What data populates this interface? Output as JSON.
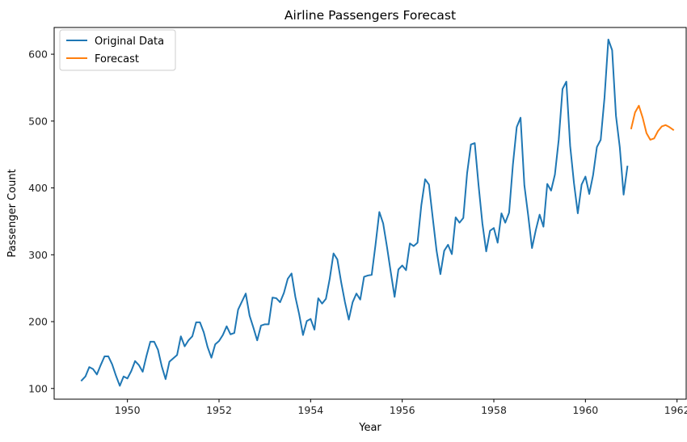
{
  "chart_data": {
    "type": "line",
    "title": "Airline Passengers Forecast",
    "xlabel": "Year",
    "ylabel": "Passenger Count",
    "xlim": [
      1948.4,
      1962.2
    ],
    "ylim": [
      84,
      640
    ],
    "xticks": [
      1950,
      1952,
      1954,
      1956,
      1958,
      1960,
      1962
    ],
    "yticks": [
      100,
      200,
      300,
      400,
      500,
      600
    ],
    "grid": false,
    "legend": "top-left",
    "series": [
      {
        "name": "Original Data",
        "color": "#1f77b4",
        "x_start": 1949.0,
        "x_step": 0.0833333,
        "values": [
          112,
          118,
          132,
          129,
          121,
          135,
          148,
          148,
          136,
          119,
          104,
          118,
          115,
          126,
          141,
          135,
          125,
          149,
          170,
          170,
          158,
          133,
          114,
          140,
          145,
          150,
          178,
          163,
          172,
          178,
          199,
          199,
          184,
          162,
          146,
          166,
          171,
          180,
          193,
          181,
          183,
          218,
          230,
          242,
          209,
          191,
          172,
          194,
          196,
          196,
          236,
          235,
          229,
          243,
          264,
          272,
          237,
          211,
          180,
          201,
          204,
          188,
          235,
          227,
          234,
          264,
          302,
          293,
          259,
          229,
          203,
          229,
          242,
          233,
          267,
          269,
          270,
          315,
          364,
          347,
          312,
          274,
          237,
          278,
          284,
          277,
          317,
          313,
          318,
          374,
          413,
          405,
          355,
          306,
          271,
          306,
          315,
          301,
          356,
          348,
          355,
          422,
          465,
          467,
          404,
          347,
          305,
          336,
          340,
          318,
          362,
          348,
          363,
          435,
          491,
          505,
          404,
          359,
          310,
          337,
          360,
          342,
          406,
          396,
          420,
          472,
          548,
          559,
          463,
          407,
          362,
          405,
          417,
          391,
          419,
          461,
          472,
          535,
          622,
          606,
          508,
          461,
          390,
          432
        ]
      },
      {
        "name": "Forecast",
        "color": "#ff7f0e",
        "x_start": 1961.0,
        "x_step": 0.0833333,
        "values": [
          489,
          513,
          523,
          505,
          482,
          472,
          474,
          485,
          492,
          494,
          491,
          487
        ]
      }
    ]
  }
}
